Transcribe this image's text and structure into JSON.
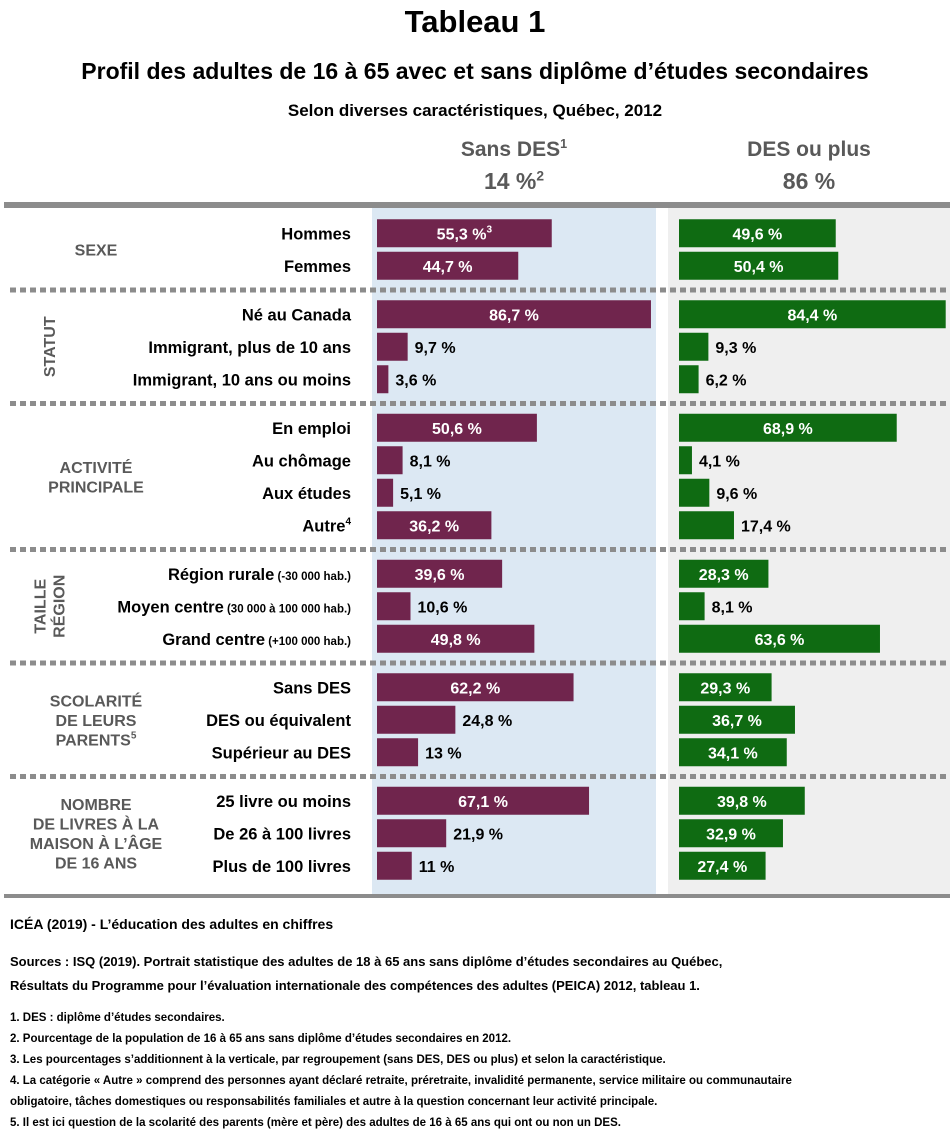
{
  "title": "Tableau 1",
  "subtitle": "Profil des adultes de 16 à 65 avec et sans diplôme d’études secondaires",
  "subtitle2": "Selon diverses caractéristiques, Québec, 2012",
  "columns": {
    "left": {
      "name": "Sans DES",
      "name_sup": "1",
      "pct": "14 %",
      "pct_sup": "2"
    },
    "right": {
      "name": "DES ou plus",
      "pct": "86 %"
    }
  },
  "colors": {
    "left_bar": "#70254D",
    "right_bar": "#0F6B12",
    "left_bg": "#DCE8F3",
    "right_bg": "#EFEFEF",
    "rule": "#8C8C8C",
    "label_gray": "#595959"
  },
  "chart_data": {
    "type": "bar",
    "series": [
      {
        "name": "Sans DES"
      },
      {
        "name": "DES ou plus"
      }
    ],
    "groups": [
      {
        "label": [
          "SEXE"
        ],
        "label_sup": "",
        "vertical": false,
        "rows": [
          {
            "label": "Hommes",
            "left": 55.3,
            "right": 49.6,
            "left_text": "55,3 %",
            "left_sup": "3",
            "right_text": "49,6 %"
          },
          {
            "label": "Femmes",
            "left": 44.7,
            "right": 50.4,
            "left_text": "44,7 %",
            "right_text": "50,4 %"
          }
        ]
      },
      {
        "label": [
          "STATUT"
        ],
        "label_sup": "",
        "vertical": true,
        "rows": [
          {
            "label": "Né au Canada",
            "left": 86.7,
            "right": 84.4,
            "left_text": "86,7 %",
            "right_text": "84,4 %"
          },
          {
            "label": "Immigrant, plus de 10 ans",
            "left": 9.7,
            "right": 9.3,
            "left_text": "9,7 %",
            "right_text": "9,3 %"
          },
          {
            "label": "Immigrant, 10 ans ou moins",
            "left": 3.6,
            "right": 6.2,
            "left_text": "3,6 %",
            "right_text": "6,2 %"
          }
        ]
      },
      {
        "label": [
          "ACTIVITÉ",
          "PRINCIPALE"
        ],
        "label_sup": "",
        "vertical": false,
        "rows": [
          {
            "label": "En emploi",
            "left": 50.6,
            "right": 68.9,
            "left_text": "50,6 %",
            "right_text": "68,9 %"
          },
          {
            "label": "Au chômage",
            "left": 8.1,
            "right": 4.1,
            "left_text": "8,1 %",
            "right_text": "4,1 %"
          },
          {
            "label": "Aux études",
            "left": 5.1,
            "right": 9.6,
            "left_text": "5,1 %",
            "right_text": "9,6 %"
          },
          {
            "label": "Autre",
            "label_sup": "4",
            "left": 36.2,
            "right": 17.4,
            "left_text": "36,2 %",
            "right_text": "17,4 %"
          }
        ]
      },
      {
        "label": [
          "TAILLE",
          "RÉGION"
        ],
        "label_sup": "",
        "vertical": true,
        "rows": [
          {
            "label": "Région rurale",
            "label_small": "(-30 000 hab.)",
            "left": 39.6,
            "right": 28.3,
            "left_text": "39,6 %",
            "right_text": "28,3 %"
          },
          {
            "label": "Moyen centre",
            "label_small": "(30 000 à 100 000 hab.)",
            "left": 10.6,
            "right": 8.1,
            "left_text": "10,6 %",
            "right_text": "8,1 %"
          },
          {
            "label": "Grand centre",
            "label_small": "(+100 000 hab.)",
            "left": 49.8,
            "right": 63.6,
            "left_text": "49,8 %",
            "right_text": "63,6 %"
          }
        ]
      },
      {
        "label": [
          "SCOLARITÉ",
          "DE LEURS",
          "PARENTS"
        ],
        "label_sup": "5",
        "vertical": false,
        "rows": [
          {
            "label": "Sans DES",
            "left": 62.2,
            "right": 29.3,
            "left_text": "62,2 %",
            "right_text": "29,3 %"
          },
          {
            "label": "DES ou équivalent",
            "left": 24.8,
            "right": 36.7,
            "left_text": "24,8 %",
            "right_text": "36,7 %"
          },
          {
            "label": "Supérieur au DES",
            "left": 13,
            "right": 34.1,
            "left_text": "13 %",
            "right_text": "34,1 %"
          }
        ]
      },
      {
        "label": [
          "NOMBRE",
          "DE LIVRES À LA",
          "MAISON À L’ÂGE",
          "DE 16 ANS"
        ],
        "label_sup": "",
        "vertical": false,
        "rows": [
          {
            "label": "25 livre ou moins",
            "left": 67.1,
            "right": 39.8,
            "left_text": "67,1 %",
            "right_text": "39,8 %"
          },
          {
            "label": "De 26 à 100 livres",
            "left": 21.9,
            "right": 32.9,
            "left_text": "21,9 %",
            "right_text": "32,9 %"
          },
          {
            "label": "Plus de 100 livres",
            "left": 11,
            "right": 27.4,
            "left_text": "11 %",
            "right_text": "27,4 %"
          }
        ]
      }
    ]
  },
  "footer": {
    "source_title": "ICÉA (2019) - L’éducation des adultes en chiffres",
    "sources_line1": "Sources : ISQ (2019). Portrait statistique des adultes de 18 à 65 ans sans diplôme d’études secondaires au Québec,",
    "sources_line2": "Résultats du Programme pour l’évaluation internationale des compétences des adultes (PEICA) 2012, tableau 1.",
    "notes": [
      "1. DES : diplôme d’études secondaires.",
      "2. Pourcentage de la population de 16 à 65 ans sans diplôme d’études secondaires en 2012.",
      "3. Les pourcentages s’additionnent à la verticale, par regroupement (sans DES, DES ou plus) et selon la caractéristique.",
      "4. La catégorie « Autre » comprend des personnes ayant déclaré retraite, préretraite, invalidité permanente, service militaire ou communautaire",
      "obligatoire, tâches domestiques ou responsabilités familiales et autre à la question concernant leur activité principale.",
      "5. Il est ici question de la scolarité des parents (mère et père) des adultes de 16 à 65 ans qui ont ou non un DES."
    ]
  }
}
